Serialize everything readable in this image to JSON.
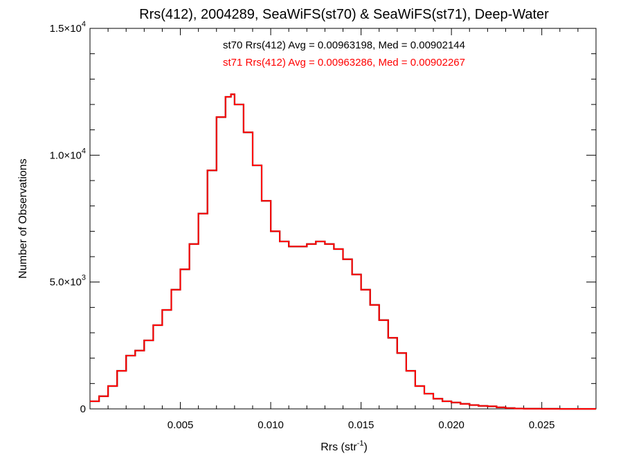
{
  "chart_data": {
    "type": "histogram",
    "title": "Rrs(412), 2004289, SeaWiFS(st70) & SeaWiFS(st71), Deep-Water",
    "xlabel": "Rrs (str",
    "xlabel_sup": "-1",
    "xlabel_end": ")",
    "ylabel": "Number of Observations",
    "xlim": [
      0.0,
      0.028
    ],
    "ylim": [
      0,
      15000
    ],
    "x_ticks": [
      {
        "value": 0.005,
        "label": "0.005"
      },
      {
        "value": 0.01,
        "label": "0.010"
      },
      {
        "value": 0.015,
        "label": "0.015"
      },
      {
        "value": 0.02,
        "label": "0.020"
      },
      {
        "value": 0.025,
        "label": "0.025"
      }
    ],
    "y_ticks": [
      {
        "value": 0,
        "mant": "0",
        "exp": ""
      },
      {
        "value": 5000,
        "mant": "5.0×10",
        "exp": "3"
      },
      {
        "value": 10000,
        "mant": "1.0×10",
        "exp": "4"
      },
      {
        "value": 15000,
        "mant": "1.5×10",
        "exp": "4"
      }
    ],
    "annotations": [
      {
        "text": "st70 Rrs(412) Avg = 0.00963198, Med = 0.00902144",
        "color": "#000000"
      },
      {
        "text": "st71 Rrs(412) Avg = 0.00963286, Med = 0.00902267",
        "color": "#ff0000"
      }
    ],
    "grid": false,
    "series": [
      {
        "name": "st70",
        "color": "#000000",
        "x": [
          0.0,
          0.0005,
          0.001,
          0.0015,
          0.002,
          0.0025,
          0.003,
          0.0035,
          0.004,
          0.0045,
          0.005,
          0.0055,
          0.006,
          0.0065,
          0.007,
          0.0075,
          0.0078,
          0.008,
          0.0085,
          0.009,
          0.0095,
          0.01,
          0.0105,
          0.011,
          0.0115,
          0.012,
          0.0125,
          0.013,
          0.0135,
          0.014,
          0.0145,
          0.015,
          0.0155,
          0.016,
          0.0165,
          0.017,
          0.0175,
          0.018,
          0.0185,
          0.019,
          0.0195,
          0.02,
          0.0205,
          0.021,
          0.0215,
          0.022,
          0.0225,
          0.023,
          0.0235,
          0.024,
          0.025,
          0.026,
          0.027,
          0.028
        ],
        "y": [
          300,
          500,
          900,
          1500,
          2100,
          2300,
          2700,
          3300,
          3900,
          4700,
          5500,
          6500,
          7700,
          9400,
          11500,
          12300,
          12400,
          12000,
          10900,
          9600,
          8200,
          7000,
          6600,
          6400,
          6400,
          6500,
          6600,
          6500,
          6300,
          5900,
          5300,
          4700,
          4100,
          3500,
          2800,
          2200,
          1500,
          900,
          600,
          400,
          300,
          250,
          200,
          150,
          120,
          100,
          60,
          30,
          15,
          8,
          3,
          1,
          0,
          0
        ]
      },
      {
        "name": "st71",
        "color": "#ff0000",
        "x": [
          0.0,
          0.0005,
          0.001,
          0.0015,
          0.002,
          0.0025,
          0.003,
          0.0035,
          0.004,
          0.0045,
          0.005,
          0.0055,
          0.006,
          0.0065,
          0.007,
          0.0075,
          0.0078,
          0.008,
          0.0085,
          0.009,
          0.0095,
          0.01,
          0.0105,
          0.011,
          0.0115,
          0.012,
          0.0125,
          0.013,
          0.0135,
          0.014,
          0.0145,
          0.015,
          0.0155,
          0.016,
          0.0165,
          0.017,
          0.0175,
          0.018,
          0.0185,
          0.019,
          0.0195,
          0.02,
          0.0205,
          0.021,
          0.0215,
          0.022,
          0.0225,
          0.023,
          0.0235,
          0.024,
          0.025,
          0.026,
          0.027,
          0.028
        ],
        "y": [
          300,
          500,
          900,
          1500,
          2100,
          2300,
          2700,
          3300,
          3900,
          4700,
          5500,
          6500,
          7700,
          9400,
          11500,
          12300,
          12400,
          12000,
          10900,
          9600,
          8200,
          7000,
          6600,
          6400,
          6400,
          6500,
          6600,
          6500,
          6300,
          5900,
          5300,
          4700,
          4100,
          3500,
          2800,
          2200,
          1500,
          900,
          600,
          400,
          300,
          250,
          200,
          150,
          120,
          100,
          60,
          30,
          15,
          8,
          3,
          1,
          0,
          0
        ]
      }
    ]
  }
}
